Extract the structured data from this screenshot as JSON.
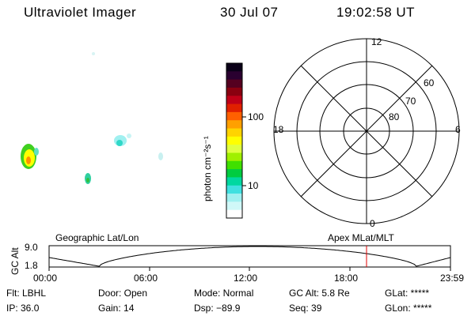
{
  "header": {
    "instrument": "Ultraviolet Imager",
    "date": "30 Jul 07",
    "time": "19:02:58 UT"
  },
  "colorbar": {
    "unit_label": "photon cm⁻²s⁻¹",
    "ticks": [
      "100",
      "10"
    ],
    "colors": [
      "#0a0018",
      "#2a0030",
      "#550020",
      "#8a0010",
      "#c00018",
      "#e02000",
      "#ff6000",
      "#ffa000",
      "#ffd400",
      "#ffff00",
      "#e0ff40",
      "#a0f000",
      "#40e000",
      "#00cc40",
      "#00d8a0",
      "#40e0e0",
      "#a0f0f0",
      "#d0f8f8",
      "#ffffff"
    ]
  },
  "polar": {
    "mlt_labels": {
      "top": "12",
      "left": "18",
      "right": "6",
      "bottom": "0"
    },
    "lat_labels": [
      "60",
      "70",
      "80"
    ]
  },
  "timeline": {
    "left_label": "Geographic Lat/Lon",
    "right_label": "Apex MLat/MLT",
    "axis_label": "GC Alt",
    "y_ticks": [
      "9.0",
      "1.8"
    ],
    "x_ticks": [
      "00:00",
      "06:00",
      "12:00",
      "18:00",
      "23:59"
    ],
    "marker_color": "#e00000"
  },
  "info": {
    "row1": {
      "flt": "Flt: LBHL",
      "door": "Door: Open",
      "mode": "Mode: Normal",
      "gc_alt": "GC Alt: 5.8 Re",
      "glat": "GLat: *****"
    },
    "row2": {
      "ip": "IP: 36.0",
      "gain": "Gain: 14",
      "dsp": "Dsp:  −89.9",
      "seq": "Seq: 39",
      "glon": "GLon: *****"
    }
  }
}
